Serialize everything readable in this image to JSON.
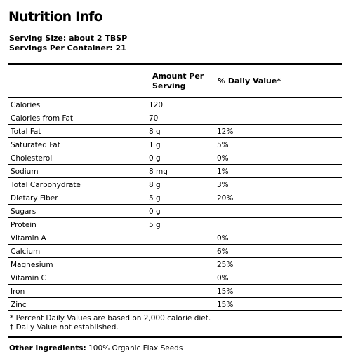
{
  "title": "Nutrition Info",
  "serving": {
    "size": "Serving Size: about 2 TBSP",
    "per_container": "Servings Per Container: 21"
  },
  "headers": {
    "amount": "Amount Per Serving",
    "daily_value": "% Daily Value*"
  },
  "rows": [
    {
      "name": "Calories",
      "amount": "120",
      "dv": ""
    },
    {
      "name": "Calories from Fat",
      "amount": "70",
      "dv": ""
    },
    {
      "name": "Total Fat",
      "amount": "8 g",
      "dv": "12%"
    },
    {
      "name": "Saturated Fat",
      "amount": "1 g",
      "dv": "5%"
    },
    {
      "name": "Cholesterol",
      "amount": "0 g",
      "dv": "0%"
    },
    {
      "name": "Sodium",
      "amount": "8 mg",
      "dv": "1%"
    },
    {
      "name": "Total Carbohydrate",
      "amount": "8 g",
      "dv": "3%"
    },
    {
      "name": "Dietary Fiber",
      "amount": "5 g",
      "dv": "20%"
    },
    {
      "name": "Sugars",
      "amount": "0 g",
      "dv": ""
    },
    {
      "name": "Protein",
      "amount": "5 g",
      "dv": ""
    },
    {
      "name": "Vitamin A",
      "amount": "",
      "dv": "0%"
    },
    {
      "name": "Calcium",
      "amount": "",
      "dv": "6%"
    },
    {
      "name": "Magnesium",
      "amount": "",
      "dv": "25%"
    },
    {
      "name": "Vitamin C",
      "amount": "",
      "dv": "0%"
    },
    {
      "name": "Iron",
      "amount": "",
      "dv": "15%"
    },
    {
      "name": "Zinc",
      "amount": "",
      "dv": "15%"
    }
  ],
  "footnotes": [
    "* Percent Daily Values are based on 2,000 calorie diet.",
    "† Daily Value not established."
  ],
  "ingredients": {
    "label": "Other Ingredients:",
    "text": "100% Organic Flax Seeds"
  }
}
